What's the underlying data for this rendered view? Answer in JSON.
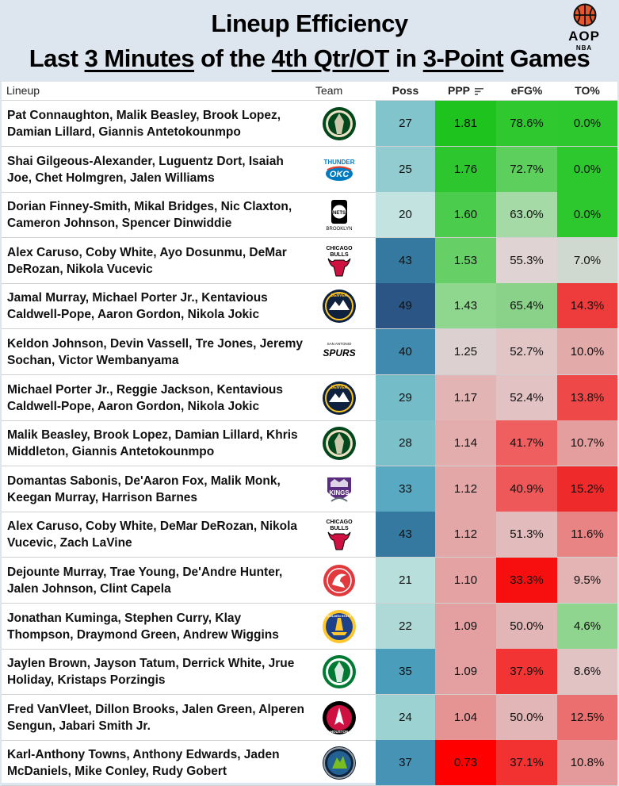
{
  "title": {
    "line1": "Lineup Efficiency",
    "line2_parts": [
      "Last ",
      "3 Minutes",
      " of the ",
      "4th Qtr/OT",
      " in ",
      "3-Point",
      " Games"
    ]
  },
  "logo": {
    "text": "AOP",
    "subtext": "NBA",
    "icon": "basketball-icon"
  },
  "columns": {
    "lineup": "Lineup",
    "team": "Team",
    "poss": "Poss",
    "ppp": "PPP",
    "efg": "eFG%",
    "to": "TO%"
  },
  "rows": [
    {
      "lineup": "Pat Connaughton, Malik Beasley, Brook Lopez, Damian Lillard, Giannis Antetokounmpo",
      "team": "bucks",
      "poss": "27",
      "ppp": "1.81",
      "efg": "78.6%",
      "to": "0.0%",
      "poss_color": "#82c4cc",
      "ppp_color": "#1ec31e",
      "efg_color": "#2fc92f",
      "to_color": "#2dc82d"
    },
    {
      "lineup": "Shai Gilgeous-Alexander, Luguentz Dort, Isaiah Joe, Chet Holmgren, Jalen Williams",
      "team": "thunder",
      "poss": "25",
      "ppp": "1.76",
      "efg": "72.7%",
      "to": "0.0%",
      "poss_color": "#92ccd1",
      "ppp_color": "#2ec62e",
      "efg_color": "#5ccf5c",
      "to_color": "#2dc82d"
    },
    {
      "lineup": "Dorian Finney-Smith, Mikal Bridges, Nic Claxton, Cameron Johnson, Spencer Dinwiddie",
      "team": "nets",
      "poss": "20",
      "ppp": "1.60",
      "efg": "63.0%",
      "to": "0.0%",
      "poss_color": "#c2e3df",
      "ppp_color": "#4ccc4c",
      "efg_color": "#a5d9a5",
      "to_color": "#2dc82d"
    },
    {
      "lineup": "Alex Caruso, Coby White, Ayo Dosunmu, DeMar DeRozan, Nikola Vucevic",
      "team": "bulls",
      "poss": "43",
      "ppp": "1.53",
      "efg": "55.3%",
      "to": "7.0%",
      "poss_color": "#3579a1",
      "ppp_color": "#66d066",
      "efg_color": "#e0d3d3",
      "to_color": "#cfd9cf"
    },
    {
      "lineup": "Jamal Murray, Michael Porter Jr., Kentavious Caldwell-Pope, Aaron Gordon, Nikola Jokic",
      "team": "nuggets",
      "poss": "49",
      "ppp": "1.43",
      "efg": "65.4%",
      "to": "14.3%",
      "poss_color": "#2a5585",
      "ppp_color": "#8fd68f",
      "efg_color": "#8ad18a",
      "to_color": "#ee3c3c"
    },
    {
      "lineup": "Keldon Johnson, Devin Vassell, Tre Jones, Jeremy Sochan, Victor Wembanyama",
      "team": "spurs",
      "poss": "40",
      "ppp": "1.25",
      "efg": "52.7%",
      "to": "10.0%",
      "poss_color": "#3f8aae",
      "ppp_color": "#ddd0d0",
      "efg_color": "#e2c6c6",
      "to_color": "#e3aaaa"
    },
    {
      "lineup": "Michael Porter Jr., Reggie Jackson, Kentavious Caldwell-Pope, Aaron Gordon, Nikola Jokic",
      "team": "nuggets",
      "poss": "29",
      "ppp": "1.17",
      "efg": "52.4%",
      "to": "13.8%",
      "poss_color": "#74bdc8",
      "ppp_color": "#e2b4b4",
      "efg_color": "#e2c2c2",
      "to_color": "#ef4848"
    },
    {
      "lineup": "Malik Beasley, Brook Lopez, Damian Lillard, Khris Middleton, Giannis Antetokounmpo",
      "team": "bucks",
      "poss": "28",
      "ppp": "1.14",
      "efg": "41.7%",
      "to": "10.7%",
      "poss_color": "#7cc1ca",
      "ppp_color": "#e3adad",
      "efg_color": "#ef5f5f",
      "to_color": "#e49e9e"
    },
    {
      "lineup": "Domantas Sabonis, De'Aaron Fox, Malik Monk, Keegan Murray, Harrison Barnes",
      "team": "kings",
      "poss": "33",
      "ppp": "1.12",
      "efg": "40.9%",
      "to": "15.2%",
      "poss_color": "#58a9c1",
      "ppp_color": "#e3a7a7",
      "efg_color": "#ef5858",
      "to_color": "#ef2a2a"
    },
    {
      "lineup": "Alex Caruso, Coby White, DeMar DeRozan, Nikola Vucevic, Zach LaVine",
      "team": "bulls",
      "poss": "43",
      "ppp": "1.12",
      "efg": "51.3%",
      "to": "11.6%",
      "poss_color": "#3579a1",
      "ppp_color": "#e3a7a7",
      "efg_color": "#e2bcbc",
      "to_color": "#e98484"
    },
    {
      "lineup": "Dejounte Murray, Trae Young, De'Andre Hunter, Jalen Johnson, Clint Capela",
      "team": "hawks",
      "poss": "21",
      "ppp": "1.10",
      "efg": "33.3%",
      "to": "9.5%",
      "poss_color": "#b8dfdb",
      "ppp_color": "#e4a2a2",
      "efg_color": "#f70f0f",
      "to_color": "#e4b3b3"
    },
    {
      "lineup": "Jonathan Kuminga, Stephen Curry, Klay Thompson, Draymond Green, Andrew Wiggins",
      "team": "warriors",
      "poss": "22",
      "ppp": "1.09",
      "efg": "50.0%",
      "to": "4.6%",
      "poss_color": "#aed9d6",
      "ppp_color": "#e4a0a0",
      "efg_color": "#e2b6b6",
      "to_color": "#8fd58f"
    },
    {
      "lineup": "Jaylen Brown, Jayson Tatum, Derrick White, Jrue Holiday, Kristaps Porzingis",
      "team": "celtics",
      "poss": "35",
      "ppp": "1.09",
      "efg": "37.9%",
      "to": "8.6%",
      "poss_color": "#4a9dbb",
      "ppp_color": "#e4a0a0",
      "efg_color": "#f23434",
      "to_color": "#e2c3c3"
    },
    {
      "lineup": "Fred VanVleet, Dillon Brooks, Jalen Green, Alperen Sengun, Jabari Smith Jr.",
      "team": "rockets",
      "poss": "24",
      "ppp": "1.04",
      "efg": "50.0%",
      "to": "12.5%",
      "poss_color": "#9dd2d2",
      "ppp_color": "#e59393",
      "efg_color": "#e2b6b6",
      "to_color": "#eb6f6f"
    },
    {
      "lineup": "Karl-Anthony Towns, Anthony Edwards, Jaden McDaniels, Mike Conley, Rudy Gobert",
      "team": "timberwolves",
      "poss": "37",
      "ppp": "0.73",
      "efg": "37.1%",
      "to": "10.8%",
      "poss_color": "#4693b6",
      "ppp_color": "#ff0000",
      "efg_color": "#f23131",
      "to_color": "#e49a9a"
    }
  ],
  "team_logos": {
    "bucks": {
      "name": "bucks-logo",
      "primary": "#00471b",
      "secondary": "#eee1c6"
    },
    "thunder": {
      "name": "thunder-logo",
      "primary": "#007ac1",
      "secondary": "#ef3b24",
      "text1": "THUNDER",
      "text2": "OKC"
    },
    "nets": {
      "name": "nets-logo",
      "primary": "#000000",
      "secondary": "#ffffff",
      "text1": "NETS",
      "text2": "BROOKLYN"
    },
    "bulls": {
      "name": "bulls-logo",
      "primary": "#ce1141",
      "secondary": "#000000",
      "text1": "CHICAGO",
      "text2": "BULLS"
    },
    "nuggets": {
      "name": "nuggets-logo",
      "primary": "#0e2240",
      "secondary": "#fec524",
      "text1": "DENVER",
      "text2": "NUGGETS"
    },
    "spurs": {
      "name": "spurs-logo",
      "primary": "#000000",
      "secondary": "#c4ced4",
      "text1": "SPURS",
      "text2": "SAN ANTONIO"
    },
    "kings": {
      "name": "kings-logo",
      "primary": "#5a2d81",
      "secondary": "#63727a",
      "text1": "KINGS",
      "text2": "SACRAMENTO"
    },
    "hawks": {
      "name": "hawks-logo",
      "primary": "#e03a3e",
      "secondary": "#ffffff"
    },
    "warriors": {
      "name": "warriors-logo",
      "primary": "#1d428a",
      "secondary": "#ffc72c",
      "text1": "WARRIORS",
      "text2": "GOLDEN STATE"
    },
    "celtics": {
      "name": "celtics-logo",
      "primary": "#007a33",
      "secondary": "#ffffff"
    },
    "rockets": {
      "name": "rockets-logo",
      "primary": "#ce1141",
      "secondary": "#000000",
      "text1": "ROCKETS",
      "text2": "HOUSTON"
    },
    "timberwolves": {
      "name": "timberwolves-logo",
      "primary": "#0c2340",
      "secondary": "#78be20",
      "text1": "MINNESOTA",
      "text2": "TIMBERWOLVES"
    }
  }
}
